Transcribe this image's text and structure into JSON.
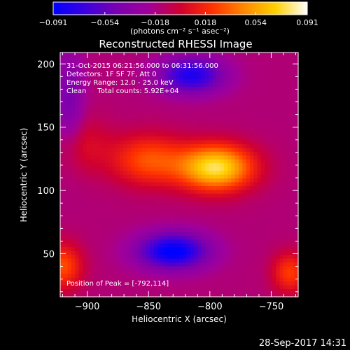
{
  "chart_data": {
    "type": "heatmap",
    "title": "Reconstructed RHESSI Image",
    "xlabel": "Heliocentric X (arcsec)",
    "ylabel": "Heliocentric Y (arcsec)",
    "xlim": [
      -922,
      -728
    ],
    "ylim": [
      16,
      209
    ],
    "xticks": [
      -900,
      -850,
      -800,
      -750
    ],
    "xtick_labels": [
      "−900",
      "−850",
      "−800",
      "−750"
    ],
    "yticks": [
      50,
      100,
      150,
      200
    ],
    "ytick_labels": [
      "50",
      "100",
      "150",
      "200"
    ],
    "colorbar": {
      "min": -0.091,
      "max": 0.091,
      "ticks": [
        -0.091,
        -0.054,
        -0.018,
        0.018,
        0.054,
        0.091
      ],
      "tick_labels": [
        "−0.091",
        "−0.054",
        "−0.018",
        "0.018",
        "0.054",
        "0.091"
      ],
      "units_label": "(photons cm⁻² s⁻¹ asec⁻²)",
      "colors": [
        "#0000ff",
        "#3c00e0",
        "#7a00b0",
        "#a0009a",
        "#d00030",
        "#ff3000",
        "#ff8800",
        "#ffd000",
        "#ffffff"
      ]
    },
    "peak": {
      "x": -792,
      "y": 114
    },
    "sources": [
      {
        "kind": "positive",
        "x": -795,
        "y": 118,
        "amplitude": 0.091
      },
      {
        "kind": "negative",
        "x": -830,
        "y": 52,
        "amplitude": -0.08
      },
      {
        "kind": "negative",
        "x": -815,
        "y": 191,
        "amplitude": -0.065
      }
    ],
    "grid": false
  },
  "annotations": {
    "time_range": "31-Oct-2015 06:21:56.000 to 06:31:56.000",
    "detectors": "Detectors: 1F 5F 7F, Att 0",
    "energy_range": "Energy Range: 12.0 - 25.0 keV",
    "clean_counts": "Clean     Total counts: 5.92E+04",
    "peak_position": "Position of Peak = [-792,114]"
  },
  "footer": {
    "timestamp": "28-Sep-2017 14:31"
  }
}
